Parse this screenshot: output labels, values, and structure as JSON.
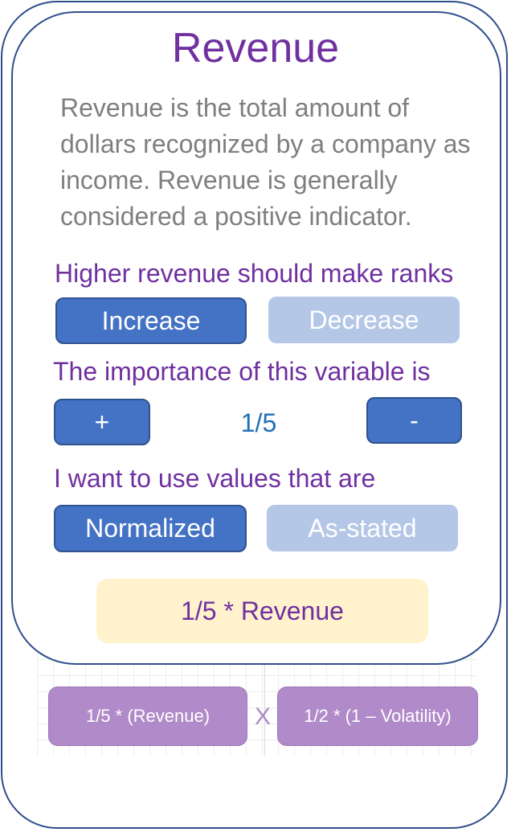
{
  "card": {
    "title": "Revenue",
    "description": "Revenue is the total amount of dollars recognized by a company as income. Revenue is generally considered a positive indicator."
  },
  "direction": {
    "prompt": "Higher revenue should make ranks",
    "increase_label": "Increase",
    "decrease_label": "Decrease",
    "selected": "Increase"
  },
  "importance": {
    "prompt": "The importance of this variable is",
    "plus_label": "+",
    "minus_label": "-",
    "value": "1/5"
  },
  "value_mode": {
    "prompt": "I want to use values that are",
    "normalized_label": "Normalized",
    "as_stated_label": "As-stated",
    "selected": "Normalized"
  },
  "formula": {
    "text": "1/5 * Revenue"
  },
  "composite": {
    "terms": [
      "1/5 * (Revenue)",
      "1/2 * (1 – Volatility)"
    ],
    "operator": "X"
  },
  "colors": {
    "accent_purple": "#7030a0",
    "button_active": "#4472c4",
    "button_inactive": "#b4c7e7",
    "formula_bg": "#fff2cc",
    "term_bg": "#b18ac9",
    "border": "#2f4f8c"
  }
}
